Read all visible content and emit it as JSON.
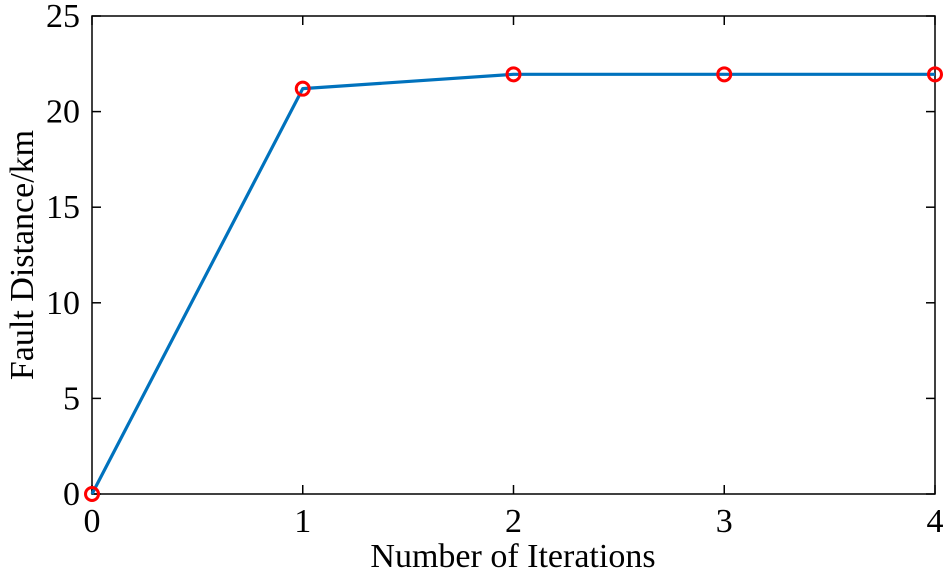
{
  "chart_data": {
    "type": "line",
    "title": "",
    "xlabel": "Number of Iterations",
    "ylabel": "Fault Distance/km",
    "x": [
      0,
      1,
      2,
      3,
      4
    ],
    "series": [
      {
        "values": [
          0,
          21.2,
          21.95,
          21.95,
          21.95
        ],
        "line_color": "#0072BD",
        "marker": "circle",
        "marker_color": "#FF0000"
      }
    ],
    "xlim": [
      0,
      4
    ],
    "ylim": [
      0,
      25
    ],
    "xticks": [
      "0",
      "1",
      "2",
      "3",
      "4"
    ],
    "yticks": [
      "0",
      "5",
      "10",
      "15",
      "20",
      "25"
    ],
    "grid": false,
    "legend": "none"
  }
}
